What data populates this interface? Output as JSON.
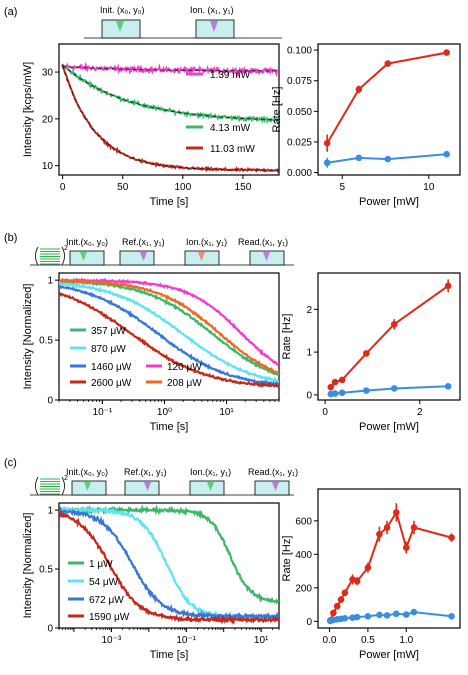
{
  "colors": {
    "magenta": "#ee3fc8",
    "green": "#3cb86b",
    "darkred": "#c42a1c",
    "red": "#de2a18",
    "blue": "#3a8ee0",
    "cyan": "#5de3f2",
    "mblue": "#3a76d8",
    "orange": "#ec6a22",
    "pulse": "#c8eef0"
  },
  "panels": {
    "a": {
      "label": "(a)",
      "seq": [
        "Init. (x₀, y₀)",
        "Ion. (x₁, y₁)"
      ],
      "decay": {
        "type": "line",
        "xlabel": "Time [s]",
        "ylabel": "Intensity [kcps/mW]",
        "xlim": [
          -3,
          180
        ],
        "ylim": [
          8,
          36
        ],
        "xticks": [
          0,
          50,
          100,
          150
        ],
        "yticks": [
          10,
          20,
          30
        ],
        "series": [
          {
            "name": "1.39 mW",
            "color": "magenta",
            "model": "exp",
            "A": 31.2,
            "tau": 60,
            "C": 30.2,
            "noise": 0.7
          },
          {
            "name": "4.13 mW",
            "color": "green",
            "model": "exp",
            "A": 31.5,
            "tau": 55,
            "C": 19.3,
            "noise": 0.5
          },
          {
            "name": "11.03 mW",
            "color": "darkred",
            "model": "exp",
            "A": 31.5,
            "tau": 27,
            "C": 9.0,
            "noise": 0.35
          }
        ]
      },
      "rate": {
        "type": "scatter",
        "xlabel": "Power [mW]",
        "ylabel": "Rate [Hz]",
        "xlim": [
          3.6,
          11.8
        ],
        "ylim": [
          -0.002,
          0.105
        ],
        "xticks": [
          5,
          10
        ],
        "yticks": [
          0.0,
          0.025,
          0.05,
          0.075,
          0.1
        ],
        "ytickfmt": 3,
        "series": [
          {
            "color": "red",
            "x": [
              4.13,
              5.96,
              7.63,
              11.03
            ],
            "y": [
              0.024,
              0.068,
              0.089,
              0.098
            ],
            "err": [
              0.007,
              0.003,
              0.002,
              0.002
            ]
          },
          {
            "color": "blue",
            "x": [
              4.13,
              5.96,
              7.63,
              11.03
            ],
            "y": [
              0.008,
              0.012,
              0.011,
              0.015
            ],
            "err": [
              0.004,
              0.002,
              0.002,
              0.002
            ]
          }
        ]
      }
    },
    "b": {
      "label": "(b)",
      "seq": [
        "Init.(x₀, y₀)",
        "Ref.(x₁, y₁)",
        "Ion.(x₁, y₁)",
        "Read.(x₁, y₁)"
      ],
      "decay": {
        "type": "line",
        "xlabel": "Time [s]",
        "ylabel": "Intensity [Normalized]",
        "xscale": "log",
        "xlim": [
          0.02,
          70
        ],
        "ylim": [
          0,
          1.06
        ],
        "xticks": [
          0.1,
          1,
          10
        ],
        "xticklabels": [
          "10⁻¹",
          "10⁰",
          "10¹"
        ],
        "yticks": [
          0,
          0.5,
          1.0
        ],
        "series": [
          {
            "name": "357 μW",
            "color": "green",
            "model": "logistic",
            "tau": 6.0,
            "n": 0.8,
            "C": 0.1,
            "noise": 0.012
          },
          {
            "name": "870 μW",
            "color": "cyan",
            "model": "logistic",
            "tau": 2.0,
            "n": 0.75,
            "C": 0.1,
            "noise": 0.012
          },
          {
            "name": "1460 μW",
            "color": "mblue",
            "model": "logistic",
            "tau": 0.8,
            "n": 0.75,
            "C": 0.1,
            "noise": 0.012
          },
          {
            "name": "2600 μW",
            "color": "darkred",
            "model": "logistic",
            "tau": 0.3,
            "n": 0.72,
            "C": 0.1,
            "noise": 0.012
          },
          {
            "name": "120 μW",
            "color": "magenta",
            "model": "logistic",
            "tau": 17,
            "n": 1.0,
            "C": 0.12,
            "noise": 0.012
          },
          {
            "name": "208 μW",
            "color": "orange",
            "model": "logistic",
            "tau": 8.0,
            "n": 0.85,
            "C": 0.1,
            "noise": 0.012
          }
        ]
      },
      "rate": {
        "type": "scatter",
        "xlabel": "Power [mW]",
        "ylabel": "Rate [Hz]",
        "xlim": [
          -0.15,
          2.85
        ],
        "ylim": [
          -0.12,
          2.85
        ],
        "xticks": [
          0,
          2
        ],
        "yticks": [
          0,
          1,
          2
        ],
        "series": [
          {
            "color": "red",
            "x": [
              0.12,
              0.21,
              0.36,
              0.87,
              1.46,
              2.6
            ],
            "y": [
              0.18,
              0.3,
              0.35,
              0.97,
              1.65,
              2.55
            ],
            "err": [
              0.03,
              0.04,
              0.04,
              0.06,
              0.12,
              0.15
            ]
          },
          {
            "color": "blue",
            "x": [
              0.12,
              0.21,
              0.36,
              0.87,
              1.46,
              2.6
            ],
            "y": [
              0.02,
              0.03,
              0.05,
              0.1,
              0.15,
              0.2
            ],
            "err": [
              0.01,
              0.01,
              0.01,
              0.01,
              0.01,
              0.02
            ]
          }
        ]
      }
    },
    "c": {
      "label": "(c)",
      "seq": [
        "Init.(x₀, y₀)",
        "Ref.(x₁, y₁)",
        "Ion.(x₁, y₁)",
        "Read.(x₁, y₁)"
      ],
      "decay": {
        "type": "line",
        "xlabel": "Time [s]",
        "ylabel": "Intensity [Normalized]",
        "xscale": "log",
        "xlim": [
          4e-05,
          30
        ],
        "ylim": [
          0,
          1.06
        ],
        "xticks": [
          0.001,
          0.1,
          10
        ],
        "xticklabels": [
          "10⁻³",
          "10⁻¹",
          "10¹"
        ],
        "yticks": [
          0,
          0.5,
          1.0
        ],
        "series": [
          {
            "name": "1 μW",
            "color": "green",
            "model": "logistic",
            "tau": 1.5,
            "n": 1.6,
            "C": 0.22,
            "noise": 0.022
          },
          {
            "name": "54 μW",
            "color": "cyan",
            "model": "logistic",
            "tau": 0.03,
            "n": 1.3,
            "C": 0.09,
            "noise": 0.022
          },
          {
            "name": "672 μW",
            "color": "mblue",
            "model": "logistic",
            "tau": 0.0035,
            "n": 1.1,
            "C": 0.1,
            "noise": 0.022
          },
          {
            "name": "1590 μW",
            "color": "darkred",
            "model": "logistic",
            "tau": 0.0009,
            "n": 1.05,
            "C": 0.07,
            "noise": 0.022
          }
        ]
      },
      "rate": {
        "type": "scatter",
        "xlabel": "Power [mW]",
        "ylabel": "Rate [Hz]",
        "xlim": [
          -0.15,
          1.7
        ],
        "ylim": [
          -40,
          790
        ],
        "xticks": [
          0,
          0.5,
          1
        ],
        "xtickfmt": 1,
        "yticks": [
          0,
          200,
          400,
          600
        ],
        "series": [
          {
            "color": "red",
            "x": [
              0.01,
              0.05,
              0.1,
              0.15,
              0.2,
              0.3,
              0.36,
              0.5,
              0.65,
              0.75,
              0.87,
              1.0,
              1.1,
              1.59
            ],
            "y": [
              5,
              50,
              90,
              130,
              170,
              250,
              240,
              320,
              520,
              560,
              650,
              440,
              560,
              500
            ],
            "err": [
              5,
              10,
              15,
              20,
              20,
              30,
              25,
              30,
              45,
              40,
              55,
              35,
              40,
              25
            ]
          },
          {
            "color": "blue",
            "x": [
              0.01,
              0.05,
              0.1,
              0.15,
              0.2,
              0.3,
              0.36,
              0.5,
              0.65,
              0.75,
              0.87,
              1.0,
              1.1,
              1.59
            ],
            "y": [
              2,
              8,
              12,
              15,
              18,
              22,
              25,
              30,
              38,
              35,
              45,
              40,
              55,
              30
            ],
            "err": [
              2,
              3,
              4,
              4,
              5,
              5,
              5,
              6,
              6,
              6,
              8,
              6,
              8,
              6
            ]
          }
        ]
      }
    }
  },
  "chart_data": [
    {
      "panel": "a-left",
      "type": "line",
      "xlabel": "Time [s]",
      "ylabel": "Intensity [kcps/mW]",
      "xlim": [
        0,
        180
      ],
      "ylim": [
        8,
        36
      ],
      "series": [
        {
          "name": "1.39 mW",
          "x": [
            0,
            50,
            100,
            175
          ],
          "y": [
            31.2,
            30.5,
            30.3,
            30.1
          ]
        },
        {
          "name": "4.13 mW",
          "x": [
            0,
            50,
            100,
            175
          ],
          "y": [
            31.5,
            24.3,
            21.0,
            19.6
          ]
        },
        {
          "name": "11.03 mW",
          "x": [
            0,
            50,
            100,
            175
          ],
          "y": [
            31.5,
            13.0,
            9.4,
            9.0
          ]
        }
      ]
    },
    {
      "panel": "a-right",
      "type": "scatter",
      "xlabel": "Power [mW]",
      "ylabel": "Rate [Hz]",
      "series": [
        {
          "color": "red",
          "x": [
            4.13,
            5.96,
            7.63,
            11.03
          ],
          "y": [
            0.024,
            0.068,
            0.089,
            0.098
          ]
        },
        {
          "color": "blue",
          "x": [
            4.13,
            5.96,
            7.63,
            11.03
          ],
          "y": [
            0.008,
            0.012,
            0.011,
            0.015
          ]
        }
      ]
    },
    {
      "panel": "b-left",
      "type": "line",
      "xscale": "log",
      "xlabel": "Time [s]",
      "ylabel": "Intensity [Normalized]",
      "series": [
        {
          "name": "357 μW"
        },
        {
          "name": "870 μW"
        },
        {
          "name": "1460 μW"
        },
        {
          "name": "2600 μW"
        },
        {
          "name": "120 μW"
        },
        {
          "name": "208 μW"
        }
      ]
    },
    {
      "panel": "b-right",
      "type": "scatter",
      "xlabel": "Power [mW]",
      "ylabel": "Rate [Hz]",
      "series": [
        {
          "color": "red",
          "x": [
            0.12,
            0.21,
            0.36,
            0.87,
            1.46,
            2.6
          ],
          "y": [
            0.18,
            0.3,
            0.35,
            0.97,
            1.65,
            2.55
          ]
        },
        {
          "color": "blue",
          "x": [
            0.12,
            0.21,
            0.36,
            0.87,
            1.46,
            2.6
          ],
          "y": [
            0.02,
            0.03,
            0.05,
            0.1,
            0.15,
            0.2
          ]
        }
      ]
    },
    {
      "panel": "c-left",
      "type": "line",
      "xscale": "log",
      "xlabel": "Time [s]",
      "ylabel": "Intensity [Normalized]",
      "series": [
        {
          "name": "1 μW"
        },
        {
          "name": "54 μW"
        },
        {
          "name": "672 μW"
        },
        {
          "name": "1590 μW"
        }
      ]
    },
    {
      "panel": "c-right",
      "type": "scatter",
      "xlabel": "Power [mW]",
      "ylabel": "Rate [Hz]",
      "series": [
        {
          "color": "red",
          "x": [
            0.01,
            0.05,
            0.1,
            0.15,
            0.2,
            0.3,
            0.36,
            0.5,
            0.65,
            0.75,
            0.87,
            1.0,
            1.1,
            1.59
          ],
          "y": [
            5,
            50,
            90,
            130,
            170,
            250,
            240,
            320,
            520,
            560,
            650,
            440,
            560,
            500
          ]
        },
        {
          "color": "blue",
          "x": [
            0.01,
            0.05,
            0.1,
            0.15,
            0.2,
            0.3,
            0.36,
            0.5,
            0.65,
            0.75,
            0.87,
            1.0,
            1.1,
            1.59
          ],
          "y": [
            2,
            8,
            12,
            15,
            18,
            22,
            25,
            30,
            38,
            35,
            45,
            40,
            55,
            30
          ]
        }
      ]
    }
  ]
}
